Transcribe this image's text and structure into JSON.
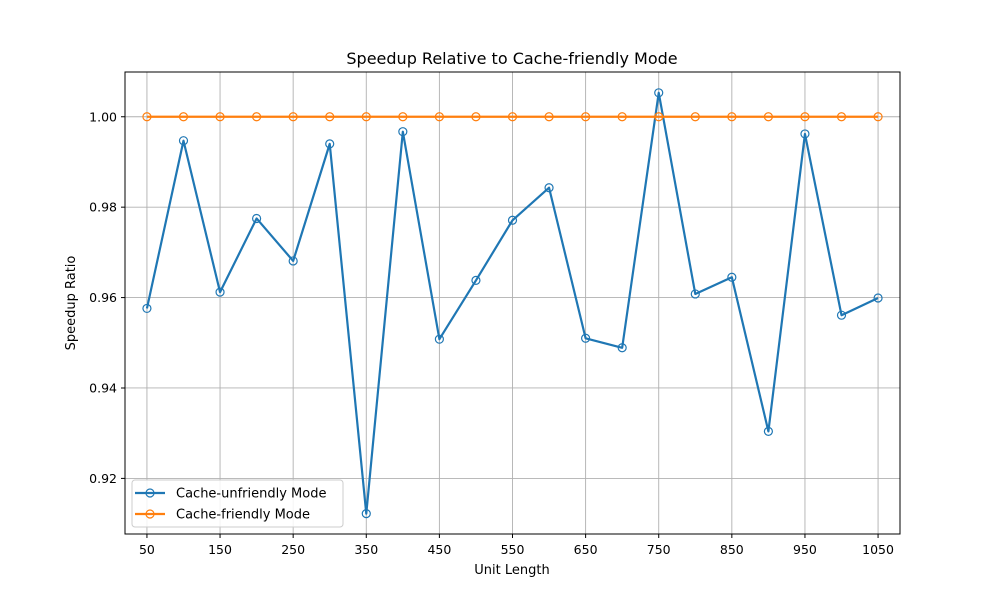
{
  "chart_data": {
    "type": "line",
    "title": "Speedup Relative to Cache-friendly Mode",
    "xlabel": "Unit Length",
    "ylabel": "Speedup Ratio",
    "x": [
      50,
      100,
      150,
      200,
      250,
      300,
      350,
      400,
      450,
      500,
      550,
      600,
      650,
      700,
      750,
      800,
      850,
      900,
      950,
      1000,
      1050
    ],
    "xticks": [
      50,
      150,
      250,
      350,
      450,
      550,
      650,
      750,
      850,
      950,
      1050
    ],
    "yticks": [
      0.92,
      0.94,
      0.96,
      0.98,
      1.0
    ],
    "ytick_labels": [
      "0.92",
      "0.94",
      "0.96",
      "0.98",
      "1.00"
    ],
    "xlim": [
      20,
      1080
    ],
    "ylim": [
      0.9077,
      1.0099
    ],
    "grid": true,
    "legend_position": "lower-left",
    "series": [
      {
        "name": "Cache-unfriendly Mode",
        "color": "#1f77b4",
        "marker": "hollow-circle",
        "values": [
          0.9576,
          0.9947,
          0.9612,
          0.9775,
          0.9681,
          0.994,
          0.9122,
          0.9967,
          0.9508,
          0.9638,
          0.9771,
          0.9843,
          0.951,
          0.9489,
          1.0053,
          0.9608,
          0.9645,
          0.9304,
          0.9962,
          0.9561,
          0.9599
        ]
      },
      {
        "name": "Cache-friendly Mode",
        "color": "#ff7f0e",
        "marker": "hollow-circle",
        "values": [
          1.0,
          1.0,
          1.0,
          1.0,
          1.0,
          1.0,
          1.0,
          1.0,
          1.0,
          1.0,
          1.0,
          1.0,
          1.0,
          1.0,
          1.0,
          1.0,
          1.0,
          1.0,
          1.0,
          1.0,
          1.0
        ]
      }
    ]
  }
}
